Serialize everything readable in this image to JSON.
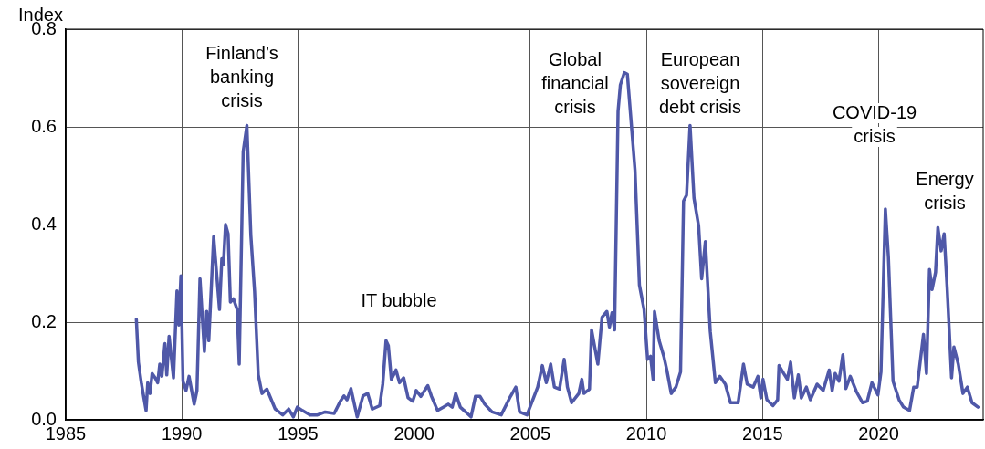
{
  "chart_data": {
    "type": "line",
    "ylabel": "Index",
    "xlim": [
      1985,
      2024.5
    ],
    "xticks": [
      1985,
      1990,
      1995,
      2000,
      2005,
      2010,
      2015,
      2020
    ],
    "ylim": [
      0,
      0.8
    ],
    "yticks": [
      {
        "value": 0,
        "label": "0.0"
      },
      0.2,
      0.4,
      0.6,
      0.8
    ],
    "grid": true,
    "legend": false,
    "marker": "none",
    "line_style": "solid",
    "annotations": [
      "Finland’s\nbanking\ncrisis",
      "IT bubble",
      "Global\nfinancial\ncrisis",
      "European\nsovereign\ndebt crisis",
      "COVID-19\ncrisis",
      "Energy\ncrisis"
    ],
    "series": [
      {
        "color": "#4f58a8",
        "x": [
          1988.04,
          1988.13,
          1988.26,
          1988.46,
          1988.53,
          1988.63,
          1988.72,
          1988.85,
          1988.96,
          1989.05,
          1989.14,
          1989.27,
          1989.35,
          1989.45,
          1989.64,
          1989.79,
          1989.87,
          1989.96,
          1990.05,
          1990.18,
          1990.31,
          1990.53,
          1990.65,
          1990.78,
          1990.97,
          1991.07,
          1991.16,
          1991.37,
          1991.62,
          1991.72,
          1991.79,
          1991.88,
          1991.99,
          1992.09,
          1992.22,
          1992.38,
          1992.47,
          1992.64,
          1992.8,
          1992.97,
          1993.13,
          1993.29,
          1993.45,
          1993.66,
          1994.02,
          1994.34,
          1994.6,
          1994.8,
          1994.97,
          1995.19,
          1995.52,
          1995.84,
          1996.17,
          1996.56,
          1996.82,
          1996.98,
          1997.11,
          1997.28,
          1997.55,
          1997.8,
          1998,
          1998.2,
          1998.52,
          1998.65,
          1998.79,
          1998.89,
          1999.02,
          1999.22,
          1999.37,
          1999.55,
          1999.74,
          1999.94,
          2000.09,
          2000.29,
          2000.59,
          2000.75,
          2001.01,
          2001.27,
          2001.47,
          2001.64,
          2001.79,
          2001.99,
          2002.45,
          2002.64,
          2002.84,
          2003.04,
          2003.36,
          2003.75,
          2004.15,
          2004.38,
          2004.54,
          2004.86,
          2005.32,
          2005.52,
          2005.69,
          2005.88,
          2006.04,
          2006.26,
          2006.46,
          2006.6,
          2006.78,
          2007.09,
          2007.22,
          2007.31,
          2007.55,
          2007.64,
          2007.91,
          2008.09,
          2008.3,
          2008.41,
          2008.52,
          2008.63,
          2008.78,
          2008.88,
          2009.05,
          2009.18,
          2009.51,
          2009.7,
          2009.9,
          2010.05,
          2010.18,
          2010.29,
          2010.35,
          2010.55,
          2010.75,
          2010.88,
          2011.07,
          2011.27,
          2011.47,
          2011.6,
          2011.73,
          2011.88,
          2012.05,
          2012.25,
          2012.38,
          2012.54,
          2012.75,
          2012.97,
          2013.16,
          2013.4,
          2013.62,
          2013.95,
          2014.18,
          2014.34,
          2014.6,
          2014.8,
          2014.93,
          2015.02,
          2015.19,
          2015.45,
          2015.65,
          2015.71,
          2015.91,
          2016.07,
          2016.21,
          2016.37,
          2016.54,
          2016.67,
          2016.89,
          2017.06,
          2017.35,
          2017.61,
          2017.87,
          2018,
          2018.13,
          2018.29,
          2018.46,
          2018.59,
          2018.78,
          2019.05,
          2019.31,
          2019.51,
          2019.71,
          2019.97,
          2020.1,
          2020.29,
          2020.42,
          2020.62,
          2020.88,
          2021.07,
          2021.33,
          2021.51,
          2021.66,
          2021.93,
          2022.06,
          2022.19,
          2022.3,
          2022.45,
          2022.55,
          2022.69,
          2022.82,
          2022.95,
          2023.14,
          2023.24,
          2023.43,
          2023.63,
          2023.82,
          2024.02,
          2024.28
        ],
        "values": [
          0.206,
          0.118,
          0.074,
          0.019,
          0.076,
          0.054,
          0.095,
          0.086,
          0.076,
          0.114,
          0.089,
          0.156,
          0.092,
          0.171,
          0.086,
          0.264,
          0.194,
          0.295,
          0.079,
          0.06,
          0.089,
          0.032,
          0.06,
          0.289,
          0.14,
          0.222,
          0.162,
          0.375,
          0.226,
          0.33,
          0.318,
          0.4,
          0.381,
          0.241,
          0.248,
          0.226,
          0.114,
          0.549,
          0.603,
          0.378,
          0.264,
          0.092,
          0.054,
          0.063,
          0.022,
          0.01,
          0.022,
          0.006,
          0.026,
          0.019,
          0.01,
          0.01,
          0.016,
          0.013,
          0.038,
          0.049,
          0.041,
          0.064,
          0.006,
          0.049,
          0.054,
          0.022,
          0.029,
          0.073,
          0.162,
          0.152,
          0.083,
          0.102,
          0.076,
          0.086,
          0.045,
          0.038,
          0.06,
          0.048,
          0.07,
          0.048,
          0.019,
          0.026,
          0.032,
          0.026,
          0.054,
          0.026,
          0.006,
          0.048,
          0.048,
          0.032,
          0.016,
          0.01,
          0.048,
          0.067,
          0.016,
          0.01,
          0.067,
          0.111,
          0.076,
          0.114,
          0.067,
          0.063,
          0.124,
          0.067,
          0.035,
          0.054,
          0.083,
          0.054,
          0.063,
          0.184,
          0.114,
          0.21,
          0.222,
          0.19,
          0.219,
          0.184,
          0.632,
          0.686,
          0.711,
          0.708,
          0.511,
          0.276,
          0.226,
          0.124,
          0.13,
          0.083,
          0.222,
          0.162,
          0.13,
          0.102,
          0.054,
          0.067,
          0.098,
          0.448,
          0.46,
          0.603,
          0.454,
          0.397,
          0.289,
          0.365,
          0.181,
          0.076,
          0.089,
          0.073,
          0.035,
          0.035,
          0.114,
          0.073,
          0.067,
          0.089,
          0.045,
          0.083,
          0.041,
          0.029,
          0.041,
          0.111,
          0.095,
          0.083,
          0.118,
          0.045,
          0.092,
          0.045,
          0.067,
          0.041,
          0.073,
          0.06,
          0.102,
          0.06,
          0.095,
          0.079,
          0.133,
          0.064,
          0.089,
          0.057,
          0.035,
          0.038,
          0.076,
          0.051,
          0.098,
          0.432,
          0.333,
          0.079,
          0.041,
          0.026,
          0.019,
          0.067,
          0.067,
          0.175,
          0.095,
          0.308,
          0.267,
          0.302,
          0.394,
          0.346,
          0.381,
          0.27,
          0.086,
          0.149,
          0.114,
          0.054,
          0.067,
          0.035,
          0.026
        ]
      }
    ]
  }
}
